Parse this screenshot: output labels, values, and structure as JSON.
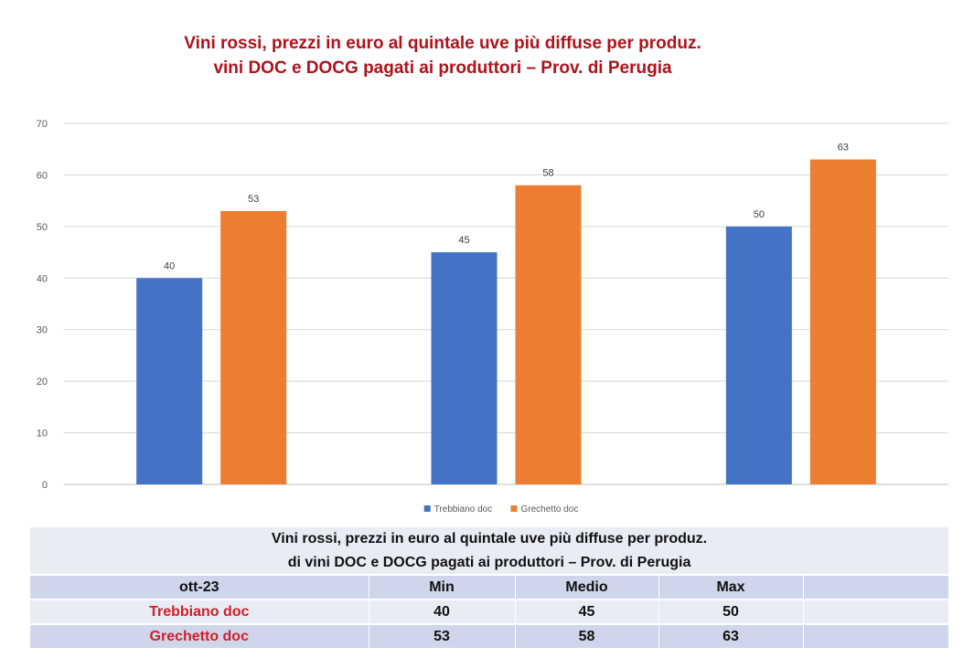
{
  "title": {
    "line1": "Vini rossi, prezzi in euro al quintale uve più diffuse per produz.",
    "line2": "vini DOC e DOCG pagati ai produttori – Prov. di Perugia"
  },
  "chart_data": {
    "type": "bar",
    "title": "Vini rossi, prezzi in euro al quintale uve più diffuse per produz. vini DOC e DOCG pagati ai produttori – Prov. di Perugia",
    "categories": [
      "Min",
      "Medio",
      "Max"
    ],
    "show_category_labels": false,
    "series": [
      {
        "name": "Trebbiano doc",
        "color": "#4472c4",
        "values": [
          40,
          45,
          50
        ]
      },
      {
        "name": "Grechetto doc",
        "color": "#ed7d31",
        "values": [
          53,
          58,
          63
        ]
      }
    ],
    "ylim": [
      0,
      70
    ],
    "yticks": [
      0,
      10,
      20,
      30,
      40,
      50,
      60,
      70
    ],
    "grid": true,
    "legend": "bottom",
    "data_labels": true
  },
  "table": {
    "title_line1": "Vini rossi, prezzi in euro al quintale uve più diffuse per produz.",
    "title_line2": "di vini DOC e DOCG pagati ai produttori – Prov. di Perugia",
    "period": "ott-23",
    "headers": [
      "Min",
      "Medio",
      "Max"
    ],
    "rows": [
      {
        "label": "Trebbiano doc",
        "values": [
          "40",
          "45",
          "50"
        ]
      },
      {
        "label": "Grechetto doc",
        "values": [
          "53",
          "58",
          "63"
        ]
      }
    ]
  }
}
